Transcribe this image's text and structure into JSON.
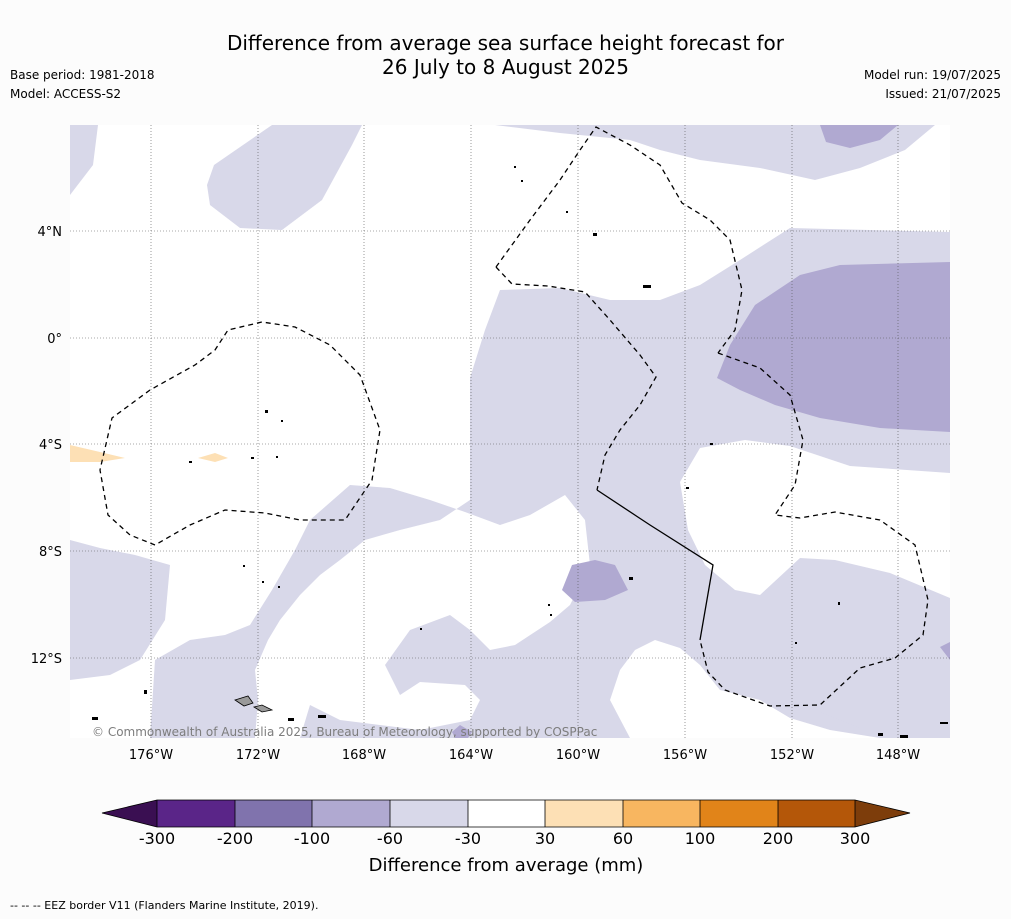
{
  "title": {
    "line1": "Difference from average sea surface height forecast for",
    "line2": "26 July to 8 August 2025"
  },
  "meta": {
    "base_period": "Base period: 1981-2018",
    "model": "Model: ACCESS-S2",
    "model_run": "Model run: 19/07/2025",
    "issued": "Issued: 21/07/2025"
  },
  "map": {
    "lat_labels": [
      "4°N",
      "0°",
      "4°S",
      "8°S",
      "12°S"
    ],
    "lon_labels": [
      "176°W",
      "172°W",
      "168°W",
      "164°W",
      "160°W",
      "156°W",
      "152°W",
      "148°W"
    ],
    "copyright": "© Commonwealth of Australia 2025, Bureau of Meteorology, supported by COSPPac",
    "colors": {
      "light_purple": "#d8d8e9",
      "mid_purple": "#b0a9d1",
      "light_orange": "#fde0b5",
      "land": "#999999"
    }
  },
  "colorbar": {
    "label": "Difference from average (mm)",
    "ticks": [
      "-300",
      "-200",
      "-100",
      "-60",
      "-30",
      "30",
      "60",
      "100",
      "200",
      "300"
    ],
    "colors": [
      "#3a0f52",
      "#5a2588",
      "#8073ad",
      "#b0a9d1",
      "#d8d8e9",
      "#ffffff",
      "#fde0b5",
      "#f8b660",
      "#e18419",
      "#b45709",
      "#7d3d0b"
    ]
  },
  "footnote": "--  --  -- EEZ border V11 (Flanders Marine Institute, 2019)."
}
